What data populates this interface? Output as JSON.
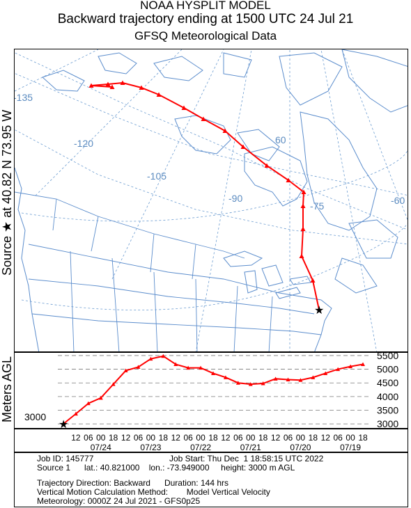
{
  "header": {
    "line1": "NOAA HYSPLIT MODEL",
    "line2": "Backward trajectory ending at 1500 UTC 24 Jul 21",
    "line3": "GFSQ Meteorological Data"
  },
  "side_labels": {
    "source": "Source ★ at   40.82 N    73.95 W",
    "altitude": "Meters AGL"
  },
  "map": {
    "longitude_labels": [
      "-135",
      "-120",
      "-105",
      "-90",
      "-75",
      "-60",
      "60"
    ],
    "source_marker": "★",
    "trajectory_color": "#ff0000",
    "graticule_color": "#6a9bd0",
    "boundary_color": "#5a8ccc"
  },
  "altitude_panel": {
    "right_ticks": [
      "5500",
      "5000",
      "4500",
      "4000",
      "3500",
      "3000"
    ],
    "start_label": "3000",
    "source_marker": "★"
  },
  "time_axis": {
    "hour_ticks": [
      "12",
      "06",
      "00",
      "18",
      "12",
      "06",
      "00",
      "18",
      "12",
      "06",
      "00",
      "18",
      "12",
      "06",
      "00",
      "18",
      "12",
      "06",
      "00",
      "18",
      "12",
      "06",
      "00",
      "18"
    ],
    "dates": [
      "07/24",
      "07/23",
      "07/22",
      "07/21",
      "07/20",
      "07/19"
    ]
  },
  "meta": {
    "job_id": "Job ID: 145777",
    "job_start": "Job Start: Thu Dec  1 18:58:15 UTC 2022",
    "source": "Source 1      lat.: 40.821000    lon.: -73.949000     height: 3000 m AGL",
    "direction": "Trajectory Direction: Backward      Duration: 144 hrs",
    "vertical": "Vertical Motion Calculation Method:        Model Vertical Velocity",
    "meteorology": "Meteorology: 0000Z 24 Jul 2021 - GFS0p25"
  },
  "chart_data": {
    "type": "line",
    "title": "Backward trajectory ending at 1500 UTC 24 Jul 21",
    "ylabel": "Meters AGL",
    "ylim": [
      2800,
      5600
    ],
    "x": [
      "07/24 15Z",
      "07/24 12Z",
      "07/24 06Z",
      "07/24 00Z",
      "07/23 18Z",
      "07/23 12Z",
      "07/23 06Z",
      "07/23 00Z",
      "07/22 18Z",
      "07/22 12Z",
      "07/22 06Z",
      "07/22 00Z",
      "07/21 18Z",
      "07/21 12Z",
      "07/21 06Z",
      "07/21 00Z",
      "07/20 18Z",
      "07/20 12Z",
      "07/20 06Z",
      "07/20 00Z",
      "07/19 18Z",
      "07/19 12Z",
      "07/19 06Z",
      "07/19 00Z",
      "07/18 18Z"
    ],
    "series": [
      {
        "values": [
          3000,
          3370,
          3750,
          3950,
          4450,
          4950,
          5080,
          5380,
          5480,
          5180,
          5050,
          5050,
          4850,
          4700,
          4500,
          4450,
          4480,
          4650,
          4620,
          4600,
          4700,
          4850,
          5000,
          5100,
          5180
        ]
      }
    ]
  }
}
